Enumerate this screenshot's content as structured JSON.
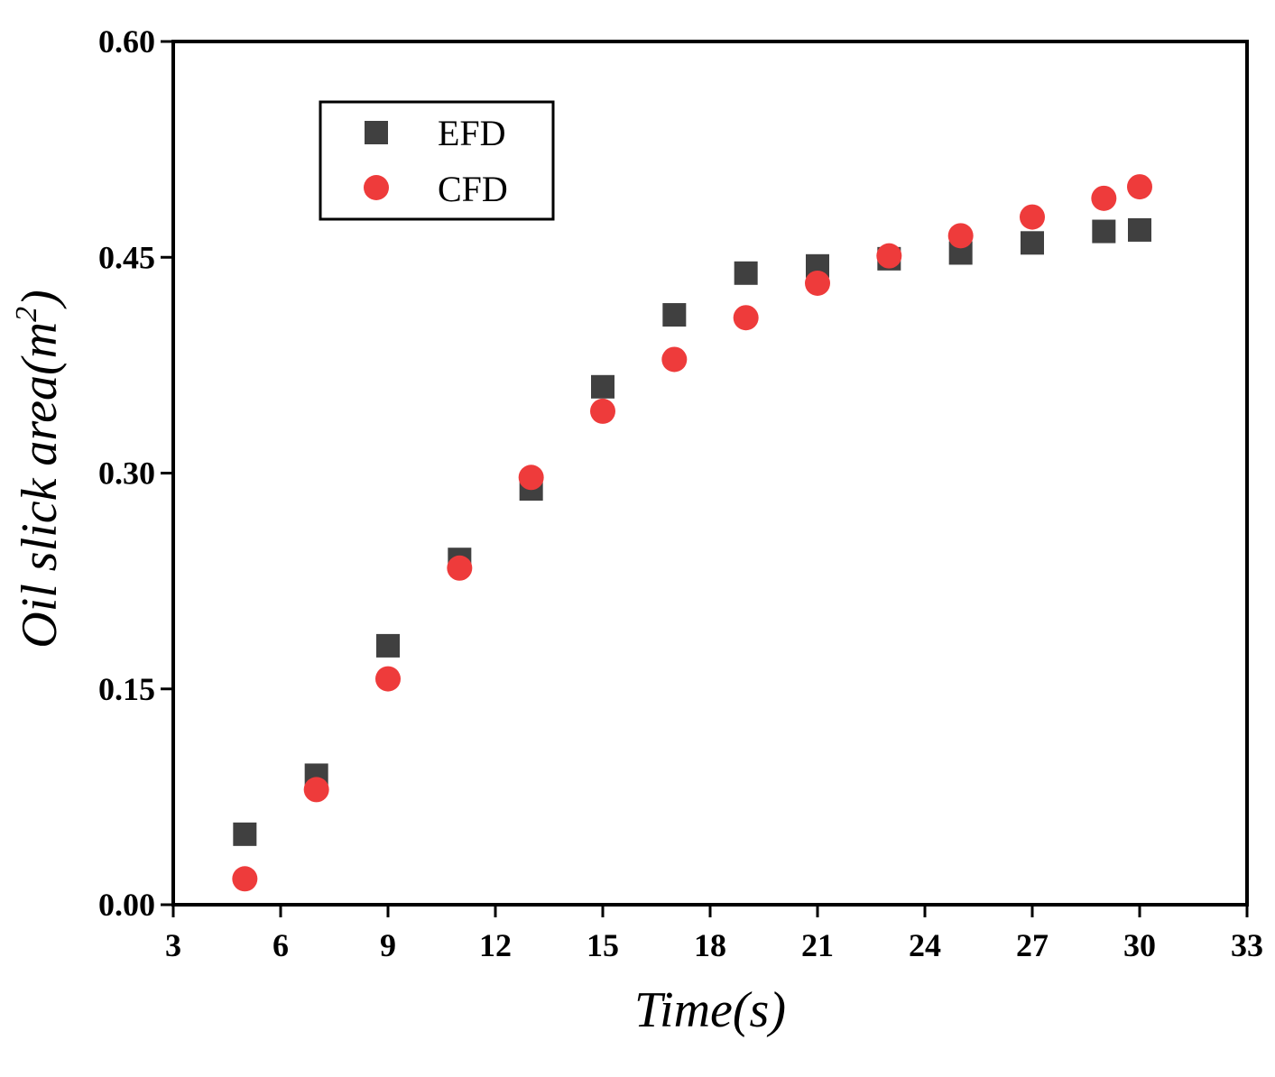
{
  "chart_data": {
    "type": "scatter",
    "title": "",
    "xlabel": "Time(s)",
    "ylabel_main": "Oil slick area(m",
    "ylabel_sup": "2",
    "ylabel_end": ")",
    "xlim": [
      3,
      33
    ],
    "ylim": [
      0,
      0.6
    ],
    "xticks": [
      3,
      6,
      9,
      12,
      15,
      18,
      21,
      24,
      27,
      30,
      33
    ],
    "xtick_labels": [
      "3",
      "6",
      "9",
      "12",
      "15",
      "18",
      "21",
      "24",
      "27",
      "30",
      "33"
    ],
    "yticks": [
      0,
      0.15,
      0.3,
      0.45,
      0.6
    ],
    "ytick_labels": [
      "0.00",
      "0.15",
      "0.30",
      "0.45",
      "0.60"
    ],
    "grid": false,
    "legend_position": "top-left",
    "series": [
      {
        "name": "EFD",
        "marker": "square",
        "color": "#404040",
        "x": [
          5,
          7,
          9,
          11,
          13,
          15,
          17,
          19,
          21,
          23,
          25,
          27,
          29,
          30
        ],
        "y": [
          0.049,
          0.09,
          0.18,
          0.24,
          0.289,
          0.36,
          0.41,
          0.439,
          0.444,
          0.449,
          0.453,
          0.46,
          0.468,
          0.469
        ]
      },
      {
        "name": "CFD",
        "marker": "circle",
        "color": "#ee3b3b",
        "x": [
          5,
          7,
          9,
          11,
          13,
          15,
          17,
          19,
          21,
          23,
          25,
          27,
          29,
          30
        ],
        "y": [
          0.018,
          0.08,
          0.157,
          0.234,
          0.297,
          0.343,
          0.379,
          0.408,
          0.432,
          0.451,
          0.465,
          0.478,
          0.491,
          0.499
        ]
      }
    ]
  }
}
